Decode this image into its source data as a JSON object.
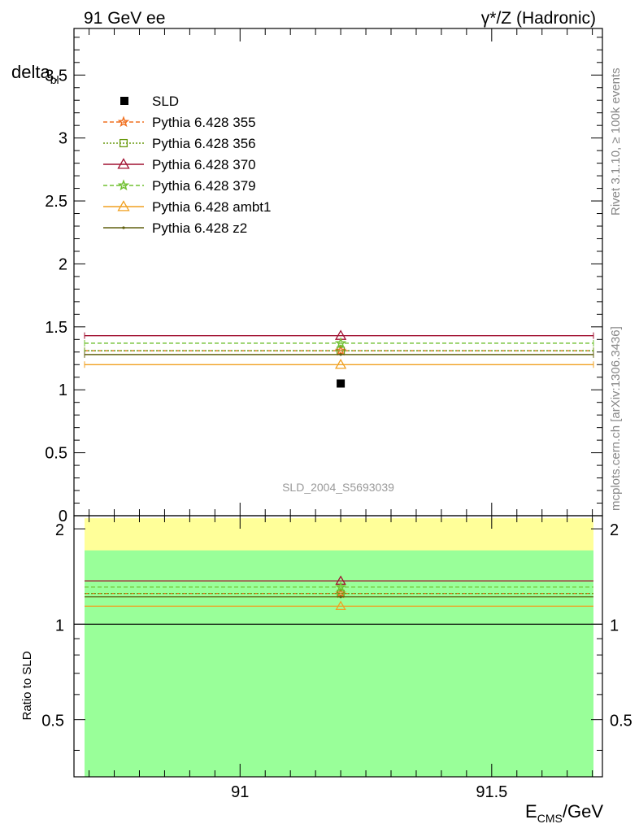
{
  "header": {
    "left_label": "91 GeV ee",
    "right_label": "γ*/Z (Hadronic)"
  },
  "side_labels": {
    "rivet": "Rivet 3.1.10, ≥ 100k events",
    "mcplots": "mcplots.cern.ch [arXiv:1306.3436]"
  },
  "watermark": "SLD_2004_S5693039",
  "chart_data": [
    {
      "type": "scatter",
      "ylabel_main": "delta",
      "ylabel_sub": "bl",
      "xlim": [
        90.67,
        91.72
      ],
      "ylim": [
        0,
        3.87
      ],
      "yticks": [
        0,
        0.5,
        1,
        1.5,
        2,
        2.5,
        3,
        3.5
      ],
      "ytick_labels": [
        "0",
        "0.5",
        "1",
        "1.5",
        "2",
        "2.5",
        "3",
        "3.5"
      ],
      "data": {
        "name": "SLD",
        "x": 91.2,
        "y": 1.05,
        "color": "#000000"
      },
      "series": [
        {
          "name": "Pythia 6.428 355",
          "x": 91.2,
          "y": 1.31,
          "color": "#f07020",
          "dash": "5,3",
          "marker": "star"
        },
        {
          "name": "Pythia 6.428 356",
          "x": 91.2,
          "y": 1.31,
          "color": "#6a9a10",
          "dash": "2,2",
          "marker": "square"
        },
        {
          "name": "Pythia 6.428 370",
          "x": 91.2,
          "y": 1.43,
          "color": "#a01030",
          "dash": "",
          "marker": "triangle"
        },
        {
          "name": "Pythia 6.428 379",
          "x": 91.2,
          "y": 1.37,
          "color": "#70c030",
          "dash": "5,3",
          "marker": "star"
        },
        {
          "name": "Pythia 6.428 ambt1",
          "x": 91.2,
          "y": 1.2,
          "color": "#f0a020",
          "dash": "",
          "marker": "triangle"
        },
        {
          "name": "Pythia 6.428 z2",
          "x": 91.2,
          "y": 1.28,
          "color": "#606010",
          "dash": "",
          "marker": "dot"
        }
      ],
      "legend_placement": "top-left"
    },
    {
      "type": "ratio",
      "ylabel": "Ratio to SLD",
      "ylim": [
        0.33,
        2.2
      ],
      "yticks": [
        0.5,
        1,
        2
      ],
      "ytick_labels": [
        "0.5",
        "1",
        "2"
      ],
      "xlabel_main": "E",
      "xlabel_sub": "CMS",
      "xlabel_tail": "/GeV",
      "xticks": [
        91,
        91.5
      ],
      "xtick_labels": [
        "91",
        "91.5"
      ],
      "bands": [
        {
          "name": "yellow-band",
          "from": 0.33,
          "to": 2.16,
          "color": "#ffff99"
        },
        {
          "name": "green-band",
          "from": 0.33,
          "to": 1.71,
          "color": "#99ff99"
        }
      ],
      "reference": 1.0,
      "ratios": [
        {
          "name": "Pythia 6.428 355",
          "y": 1.25
        },
        {
          "name": "Pythia 6.428 356",
          "y": 1.25
        },
        {
          "name": "Pythia 6.428 370",
          "y": 1.37
        },
        {
          "name": "Pythia 6.428 379",
          "y": 1.31
        },
        {
          "name": "Pythia 6.428 ambt1",
          "y": 1.14
        },
        {
          "name": "Pythia 6.428 z2",
          "y": 1.22
        }
      ]
    }
  ]
}
